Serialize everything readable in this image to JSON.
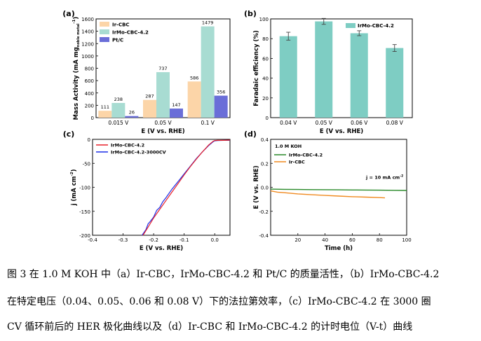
{
  "caption": {
    "line1": "图 3 在 1.0 M KOH 中（a）Ir-CBC，IrMo-CBC-4.2 和 Pt/C 的质量活性，（b）IrMo-CBC-4.2",
    "line2": "在特定电压（0.04、0.05、0.06 和 0.08 V）下的法拉第效率，（c）IrMo-CBC-4.2 在 3000 圈",
    "line3": "CV 循环前后的 HER 极化曲线以及（d）Ir-CBC 和 IrMo-CBC-4.2 的计时电位（V-t）曲线"
  },
  "chart_data": [
    {
      "panel": "(a)",
      "type": "bar",
      "xlabel": "E (V vs. RHE)",
      "ylabel": "Mass Activity (mA mg",
      "ylabel_sub": "noble metal",
      "ylabel_sup": "-1",
      "ylabel_end": ")",
      "categories": [
        "0.015 V",
        "0.05 V",
        "0.1 V"
      ],
      "ylim": [
        0,
        1600
      ],
      "yticks": [
        0,
        200,
        400,
        600,
        800,
        1000,
        1200,
        1400,
        1600
      ],
      "legend_position": "top-left",
      "series": [
        {
          "name": "Ir-CBC",
          "color": "#fcd5a8",
          "values": [
            111,
            287,
            586
          ],
          "labels": [
            "111",
            "287",
            "586"
          ]
        },
        {
          "name": "IrMo-CBC-4.2",
          "color": "#a8dcd2",
          "values": [
            238,
            737,
            1479
          ],
          "labels": [
            "238",
            "737",
            "1479"
          ]
        },
        {
          "name": "Pt/C",
          "color": "#6a6ed8",
          "values": [
            26,
            147,
            356
          ],
          "labels": [
            "26",
            "147",
            "356"
          ]
        }
      ]
    },
    {
      "panel": "(b)",
      "type": "bar",
      "xlabel": "E (V vs. RHE)",
      "ylabel": "Faradaic efficiency (%)",
      "categories": [
        "0.04 V",
        "0.05 V",
        "0.06 V",
        "0.08 V"
      ],
      "ylim": [
        0,
        100
      ],
      "yticks": [
        0,
        20,
        40,
        60,
        80,
        100
      ],
      "legend_position": "top-right",
      "series": [
        {
          "name": "IrMo-CBC-4.2",
          "color": "#7ecdc3",
          "values": [
            82.5,
            97.5,
            85.5,
            70.5
          ],
          "errors": [
            4,
            3,
            2.5,
            3.5
          ]
        }
      ]
    },
    {
      "panel": "(c)",
      "type": "line",
      "xlabel": "E (V vs. RHE)",
      "ylabel": "j (mA cm",
      "ylabel_sup": "-2",
      "ylabel_end": ")",
      "xlim": [
        -0.4,
        0.05
      ],
      "ylim": [
        -200,
        0
      ],
      "xticks": [
        -0.4,
        -0.3,
        -0.2,
        -0.1,
        0.0
      ],
      "xtick_labels": [
        "-0.4",
        "-0.3",
        "-0.2",
        "-0.1",
        "0.0"
      ],
      "yticks": [
        -200,
        -150,
        -100,
        -50,
        0
      ],
      "legend_position": "top-left",
      "series": [
        {
          "name": "IrMo-CBC-4.2",
          "color": "#e8202a",
          "x": [
            -0.235,
            -0.22,
            -0.2,
            -0.18,
            -0.16,
            -0.14,
            -0.12,
            -0.1,
            -0.08,
            -0.06,
            -0.04,
            -0.02,
            -0.005,
            0.0,
            0.01,
            0.03,
            0.05
          ],
          "y": [
            -200,
            -185,
            -164,
            -146,
            -128,
            -110,
            -92,
            -74,
            -57,
            -41,
            -26,
            -12,
            -4,
            -2.5,
            -2,
            -2,
            -1.5
          ]
        },
        {
          "name": "IrMo-CBC-4.2-3000CV",
          "color": "#1c2ee8",
          "x": [
            -0.238,
            -0.225,
            -0.218,
            -0.212,
            -0.2,
            -0.19,
            -0.18,
            -0.17,
            -0.16,
            -0.14,
            -0.12,
            -0.1,
            -0.08,
            -0.06,
            -0.04,
            -0.02,
            -0.005,
            0.0,
            0.01,
            0.03,
            0.05
          ],
          "y": [
            -200,
            -188,
            -176,
            -172,
            -162,
            -148,
            -142,
            -130,
            -122,
            -104,
            -88,
            -72,
            -56,
            -40,
            -26,
            -13,
            -5,
            -3,
            -2.5,
            -2,
            -2
          ]
        }
      ]
    },
    {
      "panel": "(d)",
      "type": "line",
      "xlabel": "Time (h)",
      "ylabel": "E (V vs. RHE)",
      "xlim": [
        0,
        100
      ],
      "ylim": [
        -0.4,
        0.4
      ],
      "xticks": [
        20,
        40,
        60,
        80,
        100
      ],
      "yticks": [
        -0.4,
        -0.2,
        0.0,
        0.2,
        0.4
      ],
      "ytick_labels": [
        "-0.4",
        "-0.2",
        "0.0",
        "0.2",
        "0.4"
      ],
      "annotations": [
        "1.0 M KOH",
        "j = 10 mA cm",
        "-2"
      ],
      "legend_position": "top-left",
      "series": [
        {
          "name": "IrMo-CBC-4.2",
          "color": "#2a8a2a",
          "x": [
            0,
            10,
            20,
            30,
            40,
            50,
            60,
            70,
            80,
            90,
            100
          ],
          "y": [
            -0.015,
            -0.017,
            -0.018,
            -0.019,
            -0.02,
            -0.021,
            -0.022,
            -0.023,
            -0.024,
            -0.025,
            -0.026
          ]
        },
        {
          "name": "Ir-CBC",
          "color": "#f08a20",
          "x": [
            0,
            5,
            10,
            20,
            30,
            40,
            50,
            60,
            70,
            80,
            84
          ],
          "y": [
            -0.03,
            -0.04,
            -0.045,
            -0.055,
            -0.062,
            -0.068,
            -0.073,
            -0.078,
            -0.082,
            -0.086,
            -0.088
          ]
        }
      ]
    }
  ]
}
